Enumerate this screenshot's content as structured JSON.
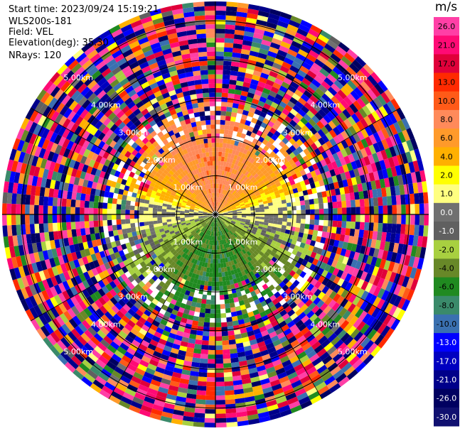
{
  "info": {
    "start_time": "Start time: 2023/09/24 15:19:21",
    "instrument": "WLS200s-181",
    "field": "Field: VEL",
    "elevation": "Elevation(deg): 35.30",
    "nrays": "NRays: 120"
  },
  "colorbar": {
    "unit": "m/s",
    "ticks": [
      "26.0",
      "21.0",
      "17.0",
      "13.0",
      "10.0",
      "8.0",
      "6.0",
      "4.0",
      "2.0",
      "1.0",
      "0.0",
      "-1.0",
      "-2.0",
      "-4.0",
      "-6.0",
      "-8.0",
      "-10.0",
      "-13.0",
      "-17.0",
      "-21.0",
      "-26.0",
      "-30.0"
    ],
    "colors": [
      "#ff3fa6",
      "#ff0a75",
      "#e0003a",
      "#ff2a00",
      "#ff5a18",
      "#ff8a5a",
      "#ff9a2a",
      "#ffb000",
      "#ffff00",
      "#ffff80",
      "#707070",
      "#606060",
      "#a8d040",
      "#688828",
      "#208a20",
      "#3a8a6a",
      "#3a70b0",
      "#0000ff",
      "#0000c0",
      "#00008a",
      "#000060",
      "#101070"
    ]
  },
  "chart_data": {
    "type": "heatmap",
    "projection": "polar (PPI)",
    "field": "VEL",
    "units": "m/s",
    "nrays": 120,
    "elevation_deg": 35.3,
    "range_rings_km": [
      1.0,
      2.0,
      3.0,
      4.0,
      5.0
    ],
    "ring_labels": [
      "1.00km",
      "2.00km",
      "3.00km",
      "4.00km",
      "5.00km"
    ],
    "color_range": [
      -30.0,
      26.0
    ],
    "pattern": {
      "inner_positive_sector": "north, yellow/orange (+2 to +8 m/s)",
      "inner_negative_sector": "south, green (-2 to -6 m/s)",
      "zero_band": "grey, east-west",
      "outer_region": "noisy, beyond about 2.5 km"
    }
  }
}
